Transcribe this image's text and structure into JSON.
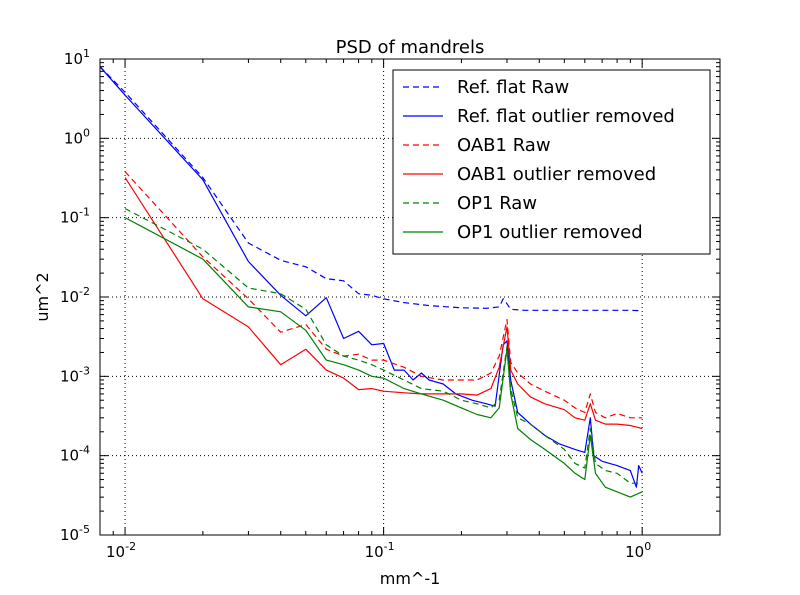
{
  "chart_data": {
    "type": "line",
    "title": "PSD of mandrels",
    "xlabel": "mm^-1",
    "ylabel": "um^2",
    "xscale": "log",
    "yscale": "log",
    "xlim": [
      0.008,
      2
    ],
    "ylim": [
      1e-05,
      10
    ],
    "grid": true,
    "legend_position": "top-right",
    "x_ticks": [
      {
        "value": 0.01,
        "base": "10",
        "exp": "-2"
      },
      {
        "value": 0.1,
        "base": "10",
        "exp": "-1"
      },
      {
        "value": 1,
        "base": "10",
        "exp": "0"
      }
    ],
    "y_ticks": [
      {
        "value": 1e-05,
        "base": "10",
        "exp": "-5"
      },
      {
        "value": 0.0001,
        "base": "10",
        "exp": "-4"
      },
      {
        "value": 0.001,
        "base": "10",
        "exp": "-3"
      },
      {
        "value": 0.01,
        "base": "10",
        "exp": "-2"
      },
      {
        "value": 0.1,
        "base": "10",
        "exp": "-1"
      },
      {
        "value": 1,
        "base": "10",
        "exp": "0"
      },
      {
        "value": 10,
        "base": "10",
        "exp": "1"
      }
    ],
    "series": [
      {
        "name": "Ref. flat Raw",
        "color": "#0000ff",
        "style": "dashed",
        "points": [
          [
            0.008,
            8.0
          ],
          [
            0.01,
            3.8
          ],
          [
            0.02,
            0.32
          ],
          [
            0.03,
            0.048
          ],
          [
            0.04,
            0.029
          ],
          [
            0.05,
            0.024
          ],
          [
            0.06,
            0.017
          ],
          [
            0.07,
            0.016
          ],
          [
            0.08,
            0.011
          ],
          [
            0.09,
            0.0105
          ],
          [
            0.1,
            0.0095
          ],
          [
            0.12,
            0.0085
          ],
          [
            0.15,
            0.0078
          ],
          [
            0.2,
            0.0073
          ],
          [
            0.25,
            0.0072
          ],
          [
            0.28,
            0.0075
          ],
          [
            0.29,
            0.0095
          ],
          [
            0.3,
            0.0082
          ],
          [
            0.31,
            0.007
          ],
          [
            0.35,
            0.0068
          ],
          [
            0.4,
            0.0068
          ],
          [
            0.5,
            0.0068
          ],
          [
            0.6,
            0.0068
          ],
          [
            0.7,
            0.0068
          ],
          [
            0.8,
            0.0068
          ],
          [
            0.9,
            0.0068
          ],
          [
            1.0,
            0.0067
          ]
        ]
      },
      {
        "name": "Ref. flat outlier removed",
        "color": "#0000ff",
        "style": "solid",
        "points": [
          [
            0.008,
            8.0
          ],
          [
            0.01,
            3.5
          ],
          [
            0.02,
            0.3
          ],
          [
            0.03,
            0.028
          ],
          [
            0.04,
            0.0105
          ],
          [
            0.05,
            0.0058
          ],
          [
            0.06,
            0.0098
          ],
          [
            0.07,
            0.003
          ],
          [
            0.08,
            0.0037
          ],
          [
            0.09,
            0.0025
          ],
          [
            0.1,
            0.0026
          ],
          [
            0.11,
            0.0012
          ],
          [
            0.12,
            0.0012
          ],
          [
            0.13,
            0.0009
          ],
          [
            0.14,
            0.0011
          ],
          [
            0.15,
            0.0009
          ],
          [
            0.17,
            0.0008
          ],
          [
            0.19,
            0.0006
          ],
          [
            0.22,
            0.0005
          ],
          [
            0.25,
            0.00045
          ],
          [
            0.27,
            0.00042
          ],
          [
            0.29,
            0.0025
          ],
          [
            0.3,
            0.0028
          ],
          [
            0.31,
            0.0009
          ],
          [
            0.33,
            0.00035
          ],
          [
            0.37,
            0.00025
          ],
          [
            0.42,
            0.00018
          ],
          [
            0.48,
            0.00014
          ],
          [
            0.55,
            0.00012
          ],
          [
            0.6,
            0.00011
          ],
          [
            0.63,
            0.0003
          ],
          [
            0.65,
            0.0001
          ],
          [
            0.7,
            8.5e-05
          ],
          [
            0.8,
            7.5e-05
          ],
          [
            0.9,
            6.5e-05
          ],
          [
            0.95,
            4e-05
          ],
          [
            0.97,
            7.5e-05
          ],
          [
            1.0,
            6e-05
          ]
        ]
      },
      {
        "name": "OAB1 Raw",
        "color": "#ff0000",
        "style": "dashed",
        "points": [
          [
            0.01,
            0.38
          ],
          [
            0.02,
            0.032
          ],
          [
            0.03,
            0.0095
          ],
          [
            0.04,
            0.0036
          ],
          [
            0.05,
            0.0045
          ],
          [
            0.06,
            0.0022
          ],
          [
            0.07,
            0.0018
          ],
          [
            0.08,
            0.0019
          ],
          [
            0.09,
            0.0016
          ],
          [
            0.1,
            0.0016
          ],
          [
            0.12,
            0.0013
          ],
          [
            0.14,
            0.001
          ],
          [
            0.17,
            0.0009
          ],
          [
            0.2,
            0.0009
          ],
          [
            0.23,
            0.0009
          ],
          [
            0.26,
            0.0011
          ],
          [
            0.28,
            0.0018
          ],
          [
            0.3,
            0.0052
          ],
          [
            0.31,
            0.0015
          ],
          [
            0.33,
            0.0011
          ],
          [
            0.37,
            0.0008
          ],
          [
            0.42,
            0.00065
          ],
          [
            0.5,
            0.0005
          ],
          [
            0.55,
            0.0004
          ],
          [
            0.6,
            0.00035
          ],
          [
            0.63,
            0.0006
          ],
          [
            0.66,
            0.00035
          ],
          [
            0.72,
            0.0003
          ],
          [
            0.8,
            0.00034
          ],
          [
            0.9,
            0.0003
          ],
          [
            1.0,
            0.0003
          ]
        ]
      },
      {
        "name": "OAB1 outlier removed",
        "color": "#ff0000",
        "style": "solid",
        "points": [
          [
            0.01,
            0.32
          ],
          [
            0.02,
            0.0095
          ],
          [
            0.03,
            0.0042
          ],
          [
            0.04,
            0.0014
          ],
          [
            0.05,
            0.0022
          ],
          [
            0.06,
            0.0012
          ],
          [
            0.07,
            0.00095
          ],
          [
            0.08,
            0.00068
          ],
          [
            0.09,
            0.0007
          ],
          [
            0.1,
            0.00065
          ],
          [
            0.12,
            0.00062
          ],
          [
            0.14,
            0.0006
          ],
          [
            0.17,
            0.0006
          ],
          [
            0.2,
            0.0006
          ],
          [
            0.23,
            0.00058
          ],
          [
            0.26,
            0.0007
          ],
          [
            0.28,
            0.0013
          ],
          [
            0.3,
            0.0042
          ],
          [
            0.31,
            0.0012
          ],
          [
            0.33,
            0.0008
          ],
          [
            0.37,
            0.00055
          ],
          [
            0.42,
            0.00045
          ],
          [
            0.5,
            0.00038
          ],
          [
            0.55,
            0.0003
          ],
          [
            0.6,
            0.00028
          ],
          [
            0.63,
            0.00045
          ],
          [
            0.66,
            0.00028
          ],
          [
            0.72,
            0.00025
          ],
          [
            0.8,
            0.00025
          ],
          [
            0.9,
            0.00024
          ],
          [
            1.0,
            0.00022
          ]
        ]
      },
      {
        "name": "OP1 Raw",
        "color": "#008000",
        "style": "dashed",
        "points": [
          [
            0.01,
            0.13
          ],
          [
            0.02,
            0.04
          ],
          [
            0.03,
            0.013
          ],
          [
            0.04,
            0.011
          ],
          [
            0.05,
            0.007
          ],
          [
            0.06,
            0.0025
          ],
          [
            0.07,
            0.0018
          ],
          [
            0.08,
            0.0016
          ],
          [
            0.09,
            0.0014
          ],
          [
            0.1,
            0.0012
          ],
          [
            0.12,
            0.0009
          ],
          [
            0.14,
            0.0007
          ],
          [
            0.17,
            0.00065
          ],
          [
            0.2,
            0.0005
          ],
          [
            0.23,
            0.00045
          ],
          [
            0.26,
            0.0004
          ],
          [
            0.28,
            0.0005
          ],
          [
            0.3,
            0.0024
          ],
          [
            0.31,
            0.0007
          ],
          [
            0.33,
            0.0003
          ],
          [
            0.37,
            0.00025
          ],
          [
            0.42,
            0.00018
          ],
          [
            0.5,
            0.00012
          ],
          [
            0.55,
            8e-05
          ],
          [
            0.6,
            7e-05
          ],
          [
            0.63,
            0.00022
          ],
          [
            0.66,
            8e-05
          ],
          [
            0.72,
            6.5e-05
          ],
          [
            0.8,
            6e-05
          ],
          [
            0.9,
            4.5e-05
          ],
          [
            1.0,
            4.5e-05
          ]
        ]
      },
      {
        "name": "OP1 outlier removed",
        "color": "#008000",
        "style": "solid",
        "points": [
          [
            0.01,
            0.1
          ],
          [
            0.02,
            0.03
          ],
          [
            0.03,
            0.0075
          ],
          [
            0.04,
            0.0065
          ],
          [
            0.05,
            0.0038
          ],
          [
            0.06,
            0.0016
          ],
          [
            0.07,
            0.0014
          ],
          [
            0.08,
            0.0012
          ],
          [
            0.09,
            0.001
          ],
          [
            0.1,
            0.00095
          ],
          [
            0.12,
            0.0007
          ],
          [
            0.14,
            0.0006
          ],
          [
            0.17,
            0.0005
          ],
          [
            0.2,
            0.0004
          ],
          [
            0.23,
            0.00033
          ],
          [
            0.26,
            0.0003
          ],
          [
            0.28,
            0.0004
          ],
          [
            0.3,
            0.0022
          ],
          [
            0.31,
            0.0006
          ],
          [
            0.33,
            0.00022
          ],
          [
            0.37,
            0.00016
          ],
          [
            0.42,
            0.00012
          ],
          [
            0.5,
            8e-05
          ],
          [
            0.55,
            6e-05
          ],
          [
            0.6,
            5e-05
          ],
          [
            0.63,
            0.00018
          ],
          [
            0.66,
            6e-05
          ],
          [
            0.72,
            4e-05
          ],
          [
            0.8,
            3.5e-05
          ],
          [
            0.9,
            3e-05
          ],
          [
            1.0,
            3.5e-05
          ]
        ]
      }
    ]
  }
}
